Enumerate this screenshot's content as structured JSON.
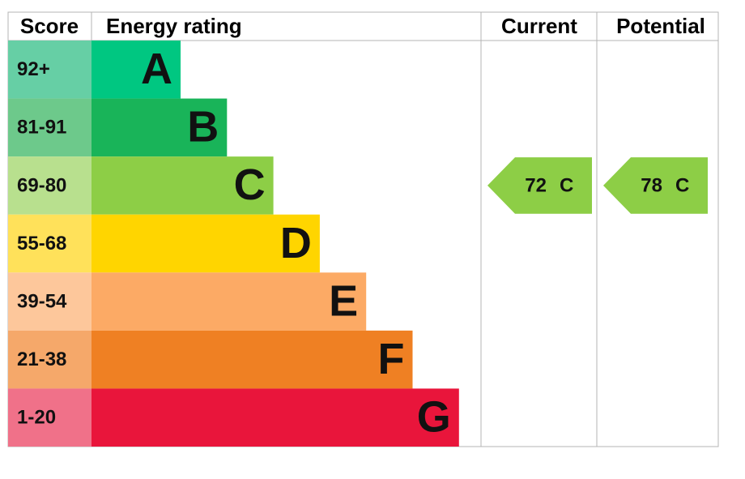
{
  "header": {
    "score": "Score",
    "rating": "Energy rating",
    "current": "Current",
    "potential": "Potential"
  },
  "bands": [
    {
      "score": "92+",
      "letter": "A",
      "color": "#00c781",
      "score_color": "#66cfa5"
    },
    {
      "score": "81-91",
      "letter": "B",
      "color": "#19b459",
      "score_color": "#6dc98b"
    },
    {
      "score": "69-80",
      "letter": "C",
      "color": "#8dce46",
      "score_color": "#b8e08e"
    },
    {
      "score": "55-68",
      "letter": "D",
      "color": "#ffd500",
      "score_color": "#ffe15a"
    },
    {
      "score": "39-54",
      "letter": "E",
      "color": "#fcaa65",
      "score_color": "#fdc79b"
    },
    {
      "score": "21-38",
      "letter": "F",
      "color": "#ef8023",
      "score_color": "#f5a86a"
    },
    {
      "score": "1-20",
      "letter": "G",
      "color": "#e9153b",
      "score_color": "#f07189"
    }
  ],
  "current": {
    "value": 72,
    "letter": "C"
  },
  "potential": {
    "value": 78,
    "letter": "C"
  }
}
